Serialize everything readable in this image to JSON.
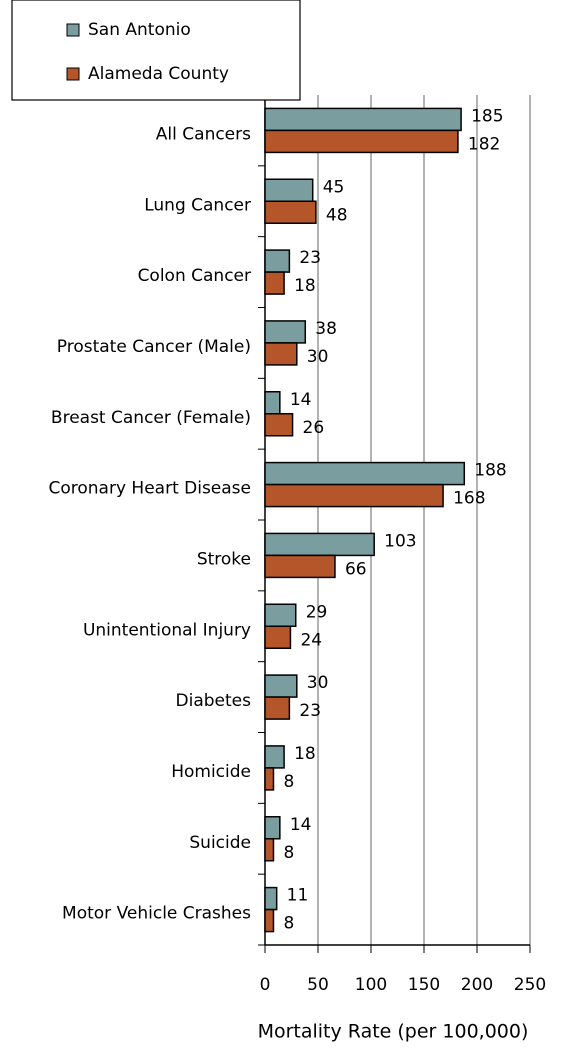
{
  "chart_data": {
    "type": "bar",
    "orientation": "horizontal",
    "x_label": "Mortality Rate (per 100,000)",
    "categories": [
      "All Cancers",
      "Lung Cancer",
      "Colon Cancer",
      "Prostate Cancer (Male)",
      "Breast Cancer (Female)",
      "Coronary Heart Disease",
      "Stroke",
      "Unintentional Injury",
      "Diabetes",
      "Homicide",
      "Suicide",
      "Motor Vehicle Crashes"
    ],
    "series": [
      {
        "name": "San Antonio",
        "color": "#7a9e9f",
        "values": [
          185,
          45,
          23,
          38,
          14,
          188,
          103,
          29,
          30,
          18,
          14,
          11
        ]
      },
      {
        "name": "Alameda County",
        "color": "#b5562a",
        "values": [
          182,
          48,
          18,
          30,
          26,
          168,
          66,
          24,
          23,
          8,
          8,
          8
        ]
      }
    ],
    "xlim": [
      0,
      250
    ],
    "xticks": [
      0,
      50,
      100,
      150,
      200,
      250
    ],
    "grid": true,
    "legend": "top-left"
  }
}
